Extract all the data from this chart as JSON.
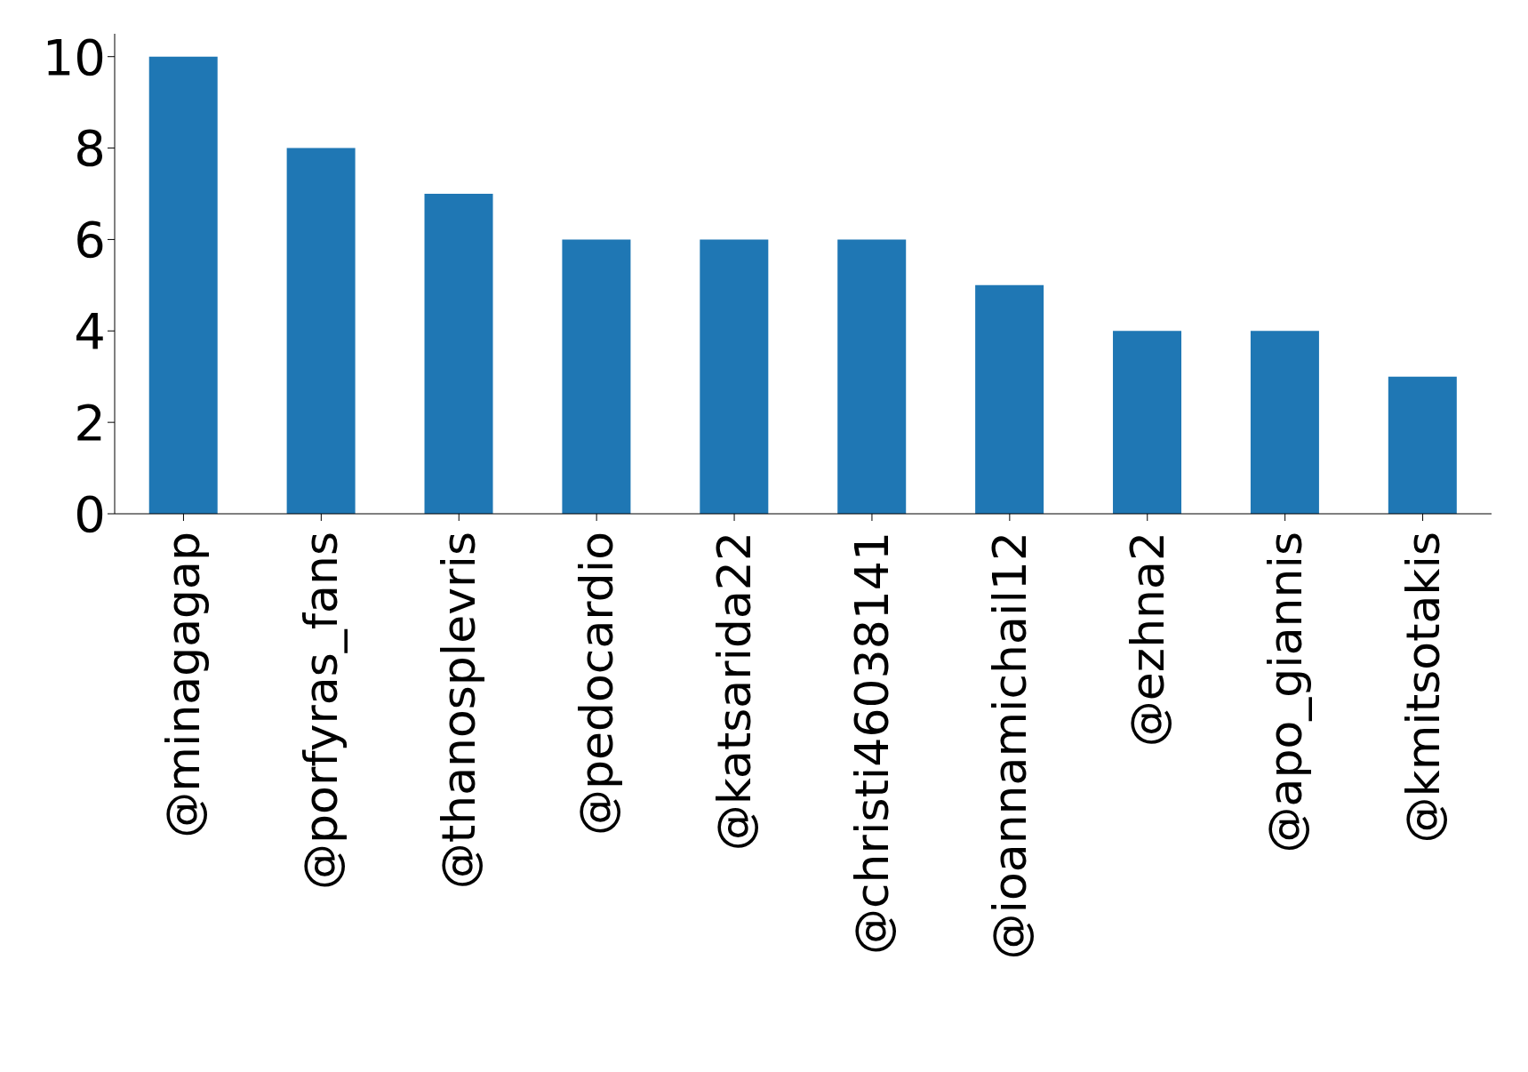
{
  "chart_data": {
    "type": "bar",
    "categories": [
      "@minagagap",
      "@porfyras_fans",
      "@thanosplevris",
      "@pedocardio",
      "@katsarida22",
      "@christi46038141",
      "@ioannamichail12",
      "@ezhna2",
      "@apo_giannis",
      "@kmitsotakis"
    ],
    "values": [
      10,
      8,
      7,
      6,
      6,
      6,
      5,
      4,
      4,
      3
    ],
    "color": "#1f77b4",
    "ylim": [
      0,
      10.5
    ],
    "yticks": [
      0,
      2,
      4,
      6,
      8,
      10
    ],
    "grid": false
  }
}
